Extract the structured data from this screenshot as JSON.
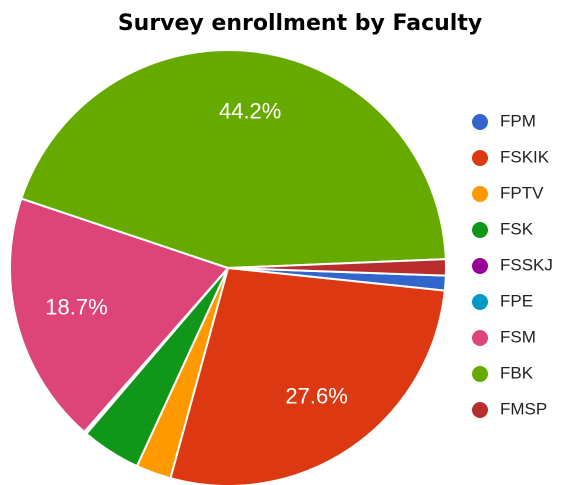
{
  "chart_data": {
    "type": "pie",
    "title": "Survey enrollment by Faculty",
    "categories": [
      "FPM",
      "FSKIK",
      "FPTV",
      "FSK",
      "FSSKJ",
      "FPE",
      "FSM",
      "FBK",
      "FMSP"
    ],
    "values": [
      1.1,
      27.6,
      2.6,
      4.4,
      0.1,
      0.1,
      18.7,
      44.2,
      1.2
    ],
    "value_labels": [
      null,
      "27.6%",
      null,
      null,
      null,
      null,
      "18.7%",
      "44.2%",
      null
    ],
    "colors": [
      "#3366cc",
      "#dc3912",
      "#ff9900",
      "#109618",
      "#990099",
      "#0099c6",
      "#dd4477",
      "#66aa00",
      "#b82e2e"
    ],
    "legend": "right"
  }
}
